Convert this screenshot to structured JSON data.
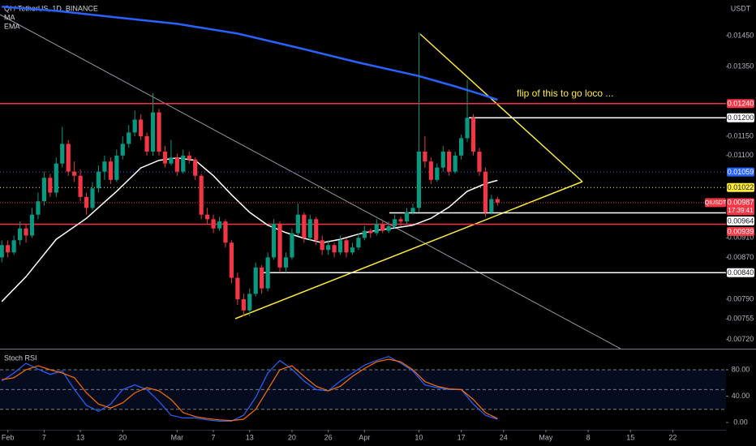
{
  "chart_data": [
    {
      "type": "candlestick",
      "title": "QI / TetherUS, 1D, BINANCE",
      "currency": "USDT",
      "log_scale": true,
      "up_color": "#089981",
      "down_color": "#f23645",
      "xlim": [
        30.7,
        150.8
      ],
      "ylim": [
        0.00705,
        0.01574
      ],
      "xticks": [
        {
          "value": 32,
          "label": "Feb"
        },
        {
          "value": 38,
          "label": "7"
        },
        {
          "value": 44,
          "label": "13"
        },
        {
          "value": 51,
          "label": "20"
        },
        {
          "value": 60,
          "label": "Mar"
        },
        {
          "value": 66,
          "label": "7"
        },
        {
          "value": 72,
          "label": "13"
        },
        {
          "value": 79,
          "label": "20"
        },
        {
          "value": 85,
          "label": "26"
        },
        {
          "value": 91,
          "label": "Apr"
        },
        {
          "value": 100,
          "label": "10"
        },
        {
          "value": 107,
          "label": "17"
        },
        {
          "value": 114,
          "label": "24"
        },
        {
          "value": 121,
          "label": "May"
        },
        {
          "value": 128,
          "label": "8"
        },
        {
          "value": 135,
          "label": "15"
        },
        {
          "value": 142,
          "label": "22"
        }
      ],
      "yticks": [
        {
          "value": 0.0145,
          "label": "0.01450"
        },
        {
          "value": 0.0135,
          "label": "0.01350"
        },
        {
          "value": 0.0115,
          "label": "0.01150"
        },
        {
          "value": 0.011,
          "label": "0.01100"
        },
        {
          "value": 0.0091,
          "label": "0.00910"
        },
        {
          "value": 0.0087,
          "label": "0.00870"
        },
        {
          "value": 0.0079,
          "label": "0.00790"
        },
        {
          "value": 0.00755,
          "label": "0.00755"
        },
        {
          "value": 0.0072,
          "label": "0.00720"
        }
      ],
      "x": [
        31,
        32,
        33,
        34,
        35,
        36,
        37,
        38,
        39,
        40,
        41,
        42,
        43,
        44,
        45,
        46,
        47,
        48,
        49,
        50,
        51,
        52,
        53,
        54,
        55,
        56,
        57,
        58,
        59,
        60,
        61,
        62,
        63,
        64,
        65,
        66,
        67,
        68,
        69,
        70,
        71,
        72,
        73,
        74,
        75,
        76,
        77,
        78,
        79,
        80,
        81,
        82,
        83,
        84,
        85,
        86,
        87,
        88,
        89,
        90,
        91,
        92,
        93,
        94,
        95,
        96,
        97,
        98,
        99,
        100,
        101,
        102,
        103,
        104,
        105,
        106,
        107,
        108,
        109,
        110,
        111,
        112,
        113
      ],
      "ohlc": [
        [
          0.0087,
          0.00905,
          0.0086,
          0.00895
        ],
        [
          0.00895,
          0.00905,
          0.0087,
          0.0088
        ],
        [
          0.0088,
          0.00915,
          0.00875,
          0.00905
        ],
        [
          0.00905,
          0.00945,
          0.00895,
          0.0093
        ],
        [
          0.0093,
          0.0094,
          0.009,
          0.00915
        ],
        [
          0.00915,
          0.00975,
          0.0091,
          0.0096
        ],
        [
          0.0096,
          0.0101,
          0.0095,
          0.0099
        ],
        [
          0.0099,
          0.0106,
          0.0098,
          0.01045
        ],
        [
          0.01045,
          0.01055,
          0.01,
          0.0101
        ],
        [
          0.0101,
          0.01095,
          0.01,
          0.0108
        ],
        [
          0.0108,
          0.01175,
          0.0107,
          0.0113
        ],
        [
          0.0113,
          0.0114,
          0.0105,
          0.0106
        ],
        [
          0.0106,
          0.01085,
          0.01035,
          0.0105
        ],
        [
          0.0105,
          0.01065,
          0.0099,
          0.01
        ],
        [
          0.01,
          0.0101,
          0.0096,
          0.00975
        ],
        [
          0.00975,
          0.01035,
          0.0097,
          0.0102
        ],
        [
          0.0102,
          0.01075,
          0.0101,
          0.0106
        ],
        [
          0.0106,
          0.011,
          0.0104,
          0.01085
        ],
        [
          0.01085,
          0.01095,
          0.0103,
          0.0104
        ],
        [
          0.0104,
          0.01115,
          0.01035,
          0.011
        ],
        [
          0.011,
          0.0115,
          0.0109,
          0.0113
        ],
        [
          0.0113,
          0.0118,
          0.0112,
          0.0116
        ],
        [
          0.0116,
          0.0122,
          0.0115,
          0.01195
        ],
        [
          0.01195,
          0.0121,
          0.0114,
          0.0115
        ],
        [
          0.0115,
          0.0116,
          0.011,
          0.0111
        ],
        [
          0.0111,
          0.0127,
          0.011,
          0.01215
        ],
        [
          0.01215,
          0.01225,
          0.011,
          0.0111
        ],
        [
          0.0111,
          0.01125,
          0.0107,
          0.0108
        ],
        [
          0.0108,
          0.0114,
          0.01075,
          0.01095
        ],
        [
          0.01095,
          0.01105,
          0.0105,
          0.0106
        ],
        [
          0.0106,
          0.01115,
          0.01055,
          0.011
        ],
        [
          0.011,
          0.0111,
          0.0108,
          0.0109
        ],
        [
          0.0109,
          0.01095,
          0.0104,
          0.0105
        ],
        [
          0.0105,
          0.01055,
          0.0095,
          0.0096
        ],
        [
          0.0096,
          0.00975,
          0.0094,
          0.0095
        ],
        [
          0.0095,
          0.0096,
          0.0092,
          0.0093
        ],
        [
          0.0093,
          0.00955,
          0.00925,
          0.00945
        ],
        [
          0.00945,
          0.0095,
          0.0089,
          0.009
        ],
        [
          0.009,
          0.00905,
          0.0082,
          0.0083
        ],
        [
          0.0083,
          0.0084,
          0.0078,
          0.0079
        ],
        [
          0.0079,
          0.008,
          0.0076,
          0.0077
        ],
        [
          0.0077,
          0.0081,
          0.0076,
          0.008
        ],
        [
          0.008,
          0.0086,
          0.00795,
          0.0085
        ],
        [
          0.0085,
          0.00855,
          0.008,
          0.0081
        ],
        [
          0.0081,
          0.0088,
          0.00805,
          0.0087
        ],
        [
          0.0087,
          0.0095,
          0.00865,
          0.0094
        ],
        [
          0.0094,
          0.00945,
          0.0084,
          0.0085
        ],
        [
          0.0085,
          0.0088,
          0.0084,
          0.0087
        ],
        [
          0.0087,
          0.0093,
          0.00865,
          0.0092
        ],
        [
          0.0092,
          0.00985,
          0.00915,
          0.0096
        ],
        [
          0.0096,
          0.00965,
          0.009,
          0.0091
        ],
        [
          0.0091,
          0.0096,
          0.00905,
          0.0095
        ],
        [
          0.0095,
          0.00955,
          0.00895,
          0.00905
        ],
        [
          0.00905,
          0.00915,
          0.00875,
          0.00885
        ],
        [
          0.00885,
          0.00905,
          0.00875,
          0.00895
        ],
        [
          0.00895,
          0.009,
          0.0087,
          0.0088
        ],
        [
          0.0088,
          0.00915,
          0.00875,
          0.00905
        ],
        [
          0.00905,
          0.0091,
          0.0087,
          0.0088
        ],
        [
          0.0088,
          0.009,
          0.00875,
          0.0089
        ],
        [
          0.0089,
          0.0092,
          0.00885,
          0.0091
        ],
        [
          0.0091,
          0.00935,
          0.00905,
          0.00925
        ],
        [
          0.00925,
          0.0093,
          0.0091,
          0.0092
        ],
        [
          0.0092,
          0.0095,
          0.00915,
          0.0094
        ],
        [
          0.0094,
          0.00945,
          0.0092,
          0.00925
        ],
        [
          0.00925,
          0.00945,
          0.0092,
          0.00935
        ],
        [
          0.00935,
          0.0096,
          0.0093,
          0.0095
        ],
        [
          0.0095,
          0.00955,
          0.00935,
          0.00945
        ],
        [
          0.00945,
          0.00975,
          0.0094,
          0.00965
        ],
        [
          0.00965,
          0.00985,
          0.0096,
          0.00975
        ],
        [
          0.00975,
          0.0146,
          0.00965,
          0.0111
        ],
        [
          0.0111,
          0.0115,
          0.0107,
          0.01085
        ],
        [
          0.01085,
          0.01095,
          0.0103,
          0.0104
        ],
        [
          0.0104,
          0.0108,
          0.01035,
          0.0107
        ],
        [
          0.0107,
          0.01125,
          0.0106,
          0.0111
        ],
        [
          0.0111,
          0.01115,
          0.0105,
          0.0106
        ],
        [
          0.0106,
          0.0111,
          0.01055,
          0.011
        ],
        [
          0.011,
          0.01155,
          0.0109,
          0.01145
        ],
        [
          0.01145,
          0.0131,
          0.01135,
          0.012
        ],
        [
          0.012,
          0.0121,
          0.011,
          0.0111
        ],
        [
          0.0111,
          0.0112,
          0.0105,
          0.0106
        ],
        [
          0.0106,
          0.0107,
          0.00955,
          0.00965
        ],
        [
          0.00965,
          0.01005,
          0.0096,
          0.00995
        ],
        [
          0.00995,
          0.01,
          0.0098,
          0.00987
        ]
      ],
      "series": [
        {
          "name": "MA",
          "color": "#ffffff",
          "x": [
            31,
            35,
            40,
            45,
            50,
            54,
            57,
            60,
            63,
            66,
            69,
            72,
            75,
            78,
            81,
            84,
            87,
            90,
            93,
            96,
            99,
            102,
            105,
            108,
            111,
            113
          ],
          "values": [
            0.00786,
            0.00832,
            0.00907,
            0.00952,
            0.01013,
            0.01069,
            0.01088,
            0.01094,
            0.01088,
            0.0105,
            0.01005,
            0.00965,
            0.00937,
            0.00921,
            0.00909,
            0.009,
            0.00907,
            0.00918,
            0.00926,
            0.00931,
            0.00937,
            0.00952,
            0.00977,
            0.01013,
            0.01031,
            0.01039
          ]
        },
        {
          "name": "EMA",
          "color": "#2962ff",
          "x": [
            31,
            40,
            50,
            60,
            70,
            80,
            90,
            100,
            106,
            110,
            113
          ],
          "values": [
            0.0155,
            0.01535,
            0.01512,
            0.0149,
            0.01457,
            0.0141,
            0.01363,
            0.01321,
            0.0129,
            0.01268,
            0.01251
          ]
        }
      ],
      "price_lines": [
        {
          "value": 0.0124,
          "label": "0.01240",
          "color": "#f23645",
          "text_color": "#ffffff"
        },
        {
          "value": 0.012,
          "label": "0.01200",
          "color": "#ffffff",
          "text_color": "#131722"
        },
        {
          "value": 0.01059,
          "label": "0.01059",
          "color": "#2962ff",
          "text_color": "#ffffff"
        },
        {
          "value": 0.01022,
          "label": "0.01022",
          "color": "#ffeb3b",
          "text_color": "#131722"
        },
        {
          "value": 0.00964,
          "label": "0.00964",
          "color": "#ffffff",
          "text_color": "#131722"
        },
        {
          "value": 0.00939,
          "label": "0.00939",
          "color": "#f23645",
          "text_color": "#ffffff"
        },
        {
          "value": 0.0084,
          "label": "0.00840",
          "color": "#ffffff",
          "text_color": "#131722"
        }
      ],
      "last_price": {
        "symbol": "QIUSDT",
        "value": 0.00987,
        "label": "0.00987",
        "countdown": "17:39:41",
        "color": "#f23645"
      },
      "annotations": [
        {
          "text": "flip of this to go loco ...",
          "color": "#ffeb3b"
        }
      ]
    },
    {
      "type": "line",
      "title": "Stoch RSI",
      "ylim": [
        -11,
        109.5
      ],
      "yticks": [
        {
          "value": 80,
          "label": "80.00"
        },
        {
          "value": 40,
          "label": "40.00"
        },
        {
          "value": 0,
          "label": "0.00"
        }
      ],
      "levels": [
        80,
        50,
        20
      ],
      "band_color": "#2962ff",
      "x": [
        31,
        33,
        35,
        37,
        39,
        41,
        43,
        45,
        47,
        49,
        51,
        53,
        55,
        57,
        59,
        61,
        63,
        65,
        67,
        69,
        71,
        73,
        75,
        77,
        79,
        81,
        83,
        85,
        87,
        89,
        91,
        93,
        95,
        97,
        99,
        101,
        103,
        105,
        107,
        109,
        111,
        113
      ],
      "series": [
        {
          "color": "#2962ff",
          "values": [
            63,
            75,
            90,
            81,
            73,
            78,
            50,
            26,
            17,
            28,
            50,
            57,
            50,
            32,
            11,
            7,
            7,
            4,
            2,
            2,
            11,
            38,
            75,
            94,
            81,
            63,
            50,
            48,
            63,
            75,
            87,
            94,
            100,
            90,
            78,
            57,
            53,
            50,
            50,
            28,
            11,
            5
          ]
        },
        {
          "color": "#ff6d00",
          "values": [
            65,
            68,
            80,
            86,
            80,
            75,
            68,
            45,
            28,
            22,
            30,
            45,
            53,
            48,
            35,
            15,
            9,
            6,
            4,
            3,
            5,
            20,
            50,
            80,
            86,
            70,
            55,
            48,
            55,
            70,
            82,
            92,
            96,
            92,
            80,
            62,
            55,
            51,
            50,
            35,
            15,
            6
          ]
        }
      ]
    }
  ]
}
